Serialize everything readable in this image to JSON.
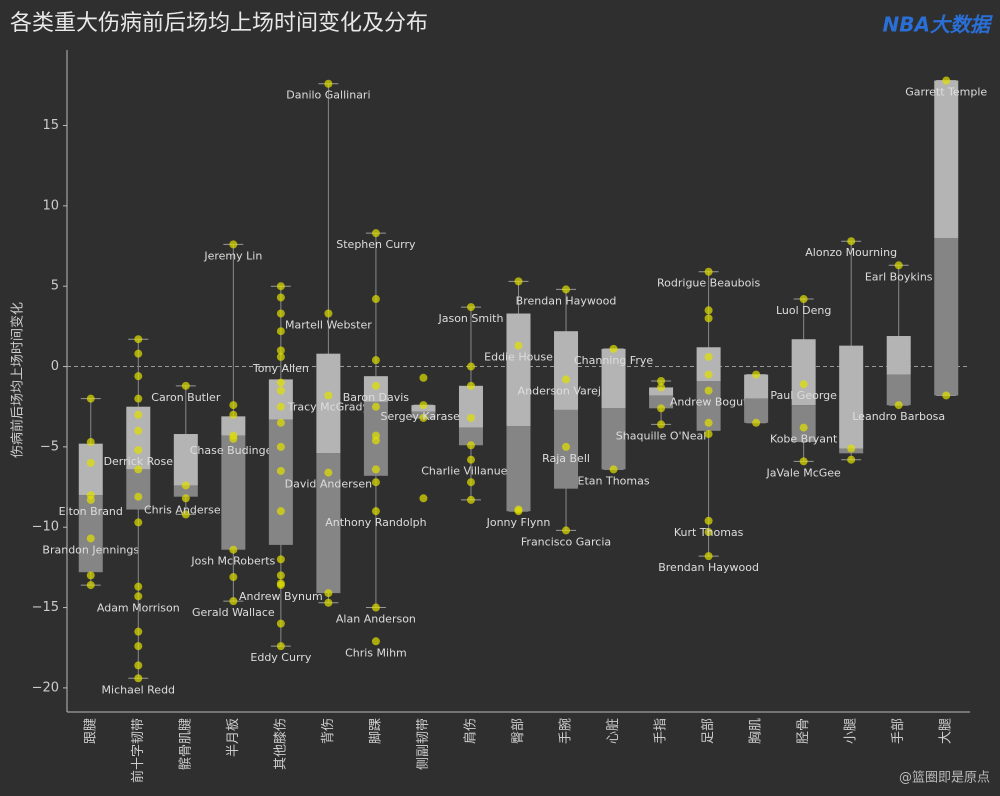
{
  "chart_data": {
    "type": "box",
    "title": "各类重大伤病前后场均上场时间变化及分布",
    "y_label": "伤病前后场均上场时间变化",
    "logo": "NBA大数据",
    "credit": "@篮圈即是原点",
    "ylim": [
      -21.5,
      19.7
    ],
    "yticks": [
      {
        "value": -20,
        "label": "−20"
      },
      {
        "value": -15,
        "label": "−15"
      },
      {
        "value": -10,
        "label": "−10"
      },
      {
        "value": -5,
        "label": "−5"
      },
      0,
      5,
      10,
      15
    ],
    "upper_color": "#b4b4b4",
    "lower_color": "#858585",
    "point_color": "#e0e000",
    "categories": [
      "跟腱",
      "前十字韧带",
      "髌骨肌腱",
      "半月板",
      "其他膝伤",
      "背伤",
      "脚踝",
      "侧副韧带",
      "肩伤",
      "臀部",
      "手腕",
      "心脏",
      "手指",
      "足部",
      "胸肌",
      "胫骨",
      "小腿",
      "手部",
      "大腿"
    ],
    "boxes": [
      {
        "low": -13.6,
        "q1": -12.8,
        "median": -8,
        "q3": -4.8,
        "high": -2,
        "points": [
          -2,
          -4.7,
          -6,
          -8,
          -13,
          -13.6
        ],
        "named": [
          {
            "name": "Elton Brand",
            "value": -8.3
          },
          {
            "name": "Brandon Jennings",
            "value": -10.7
          }
        ]
      },
      {
        "low": -19.4,
        "q1": -8.9,
        "median": -6.4,
        "q3": -2.5,
        "high": 1.7,
        "points": [
          1.7,
          0.8,
          -0.6,
          -2,
          -3,
          -4,
          -6.4,
          -8.1,
          -9.7,
          -13.7,
          -16.5,
          -17.4,
          -18.6
        ],
        "named": [
          {
            "name": "Derrick Rose",
            "value": -5.2
          },
          {
            "name": "Adam Morrison",
            "value": -14.3
          },
          {
            "name": "Michael Redd",
            "value": -19.4
          }
        ]
      },
      {
        "low": -9.2,
        "q1": -8.1,
        "median": -7.4,
        "q3": -4.2,
        "high": -1.2,
        "points": [
          -9.2,
          -7.4
        ],
        "named": [
          {
            "name": "Caron Butler",
            "value": -1.2
          },
          {
            "name": "Chris Andersen",
            "value": -8.2
          }
        ]
      },
      {
        "low": -14.6,
        "q1": -11.4,
        "median": -4.3,
        "q3": -3.1,
        "high": 7.6,
        "points": [
          -2.4,
          -3,
          -4.3,
          -13.1
        ],
        "named": [
          {
            "name": "Jeremy Lin",
            "value": 7.6
          },
          {
            "name": "Chase Budinger",
            "value": -4.5
          },
          {
            "name": "Josh McRoberts",
            "value": -11.4
          },
          {
            "name": "Gerald Wallace",
            "value": -14.6
          }
        ]
      },
      {
        "low": -17.4,
        "q1": -11.1,
        "median": -3.3,
        "q3": -0.8,
        "high": 5,
        "points": [
          5,
          4.3,
          3.3,
          2.2,
          1,
          -1,
          -1.5,
          -2.5,
          -3.5,
          -5,
          -6.5,
          -9,
          -12,
          -13,
          -13.5,
          -16
        ],
        "named": [
          {
            "name": "Tony Allen",
            "value": 0.6
          },
          {
            "name": "Andrew Bynum",
            "value": -13.6
          },
          {
            "name": "Eddy Curry",
            "value": -17.4
          }
        ]
      },
      {
        "low": -14.7,
        "q1": -14.1,
        "median": -5.4,
        "q3": 0.8,
        "high": 17.6,
        "points": [
          -14.1,
          -14.7
        ],
        "named": [
          {
            "name": "Danilo Gallinari",
            "value": 17.6
          },
          {
            "name": "Martell Webster",
            "value": 3.3
          },
          {
            "name": "Tracy McGrady",
            "value": -1.8
          },
          {
            "name": "David Andersen",
            "value": -6.6
          }
        ]
      },
      {
        "low": -15,
        "q1": -6.8,
        "median": -2.2,
        "q3": -0.6,
        "high": 8.3,
        "points": [
          4.2,
          0.4,
          -2.5,
          -4.3,
          -4.6,
          -6.4,
          -7.2
        ],
        "named": [
          {
            "name": "Stephen Curry",
            "value": 8.3
          },
          {
            "name": "Baron Davis",
            "value": -1.2
          },
          {
            "name": "Anthony Randolph",
            "value": -9
          },
          {
            "name": "Alan Anderson",
            "value": -15
          },
          {
            "name": "Chris Mihm",
            "value": -17.1
          }
        ]
      },
      {
        "low": -3.2,
        "q1": -3.2,
        "median": -2.8,
        "q3": -2.4,
        "high": -2.4,
        "points": [
          -0.7,
          -3.2,
          -8.2
        ],
        "named": [
          {
            "name": "Sergey Karasev",
            "value": -2.4
          }
        ]
      },
      {
        "low": -8.3,
        "q1": -4.9,
        "median": -3.8,
        "q3": -1.2,
        "high": 3.7,
        "points": [
          0,
          -1.2,
          -3.2,
          -4.9,
          -7.2,
          -8.3
        ],
        "named": [
          {
            "name": "Jason Smith",
            "value": 3.7
          },
          {
            "name": "Charlie Villanueva",
            "value": -5.8
          }
        ]
      },
      {
        "low": -9,
        "q1": -9,
        "median": -3.7,
        "q3": 3.3,
        "high": 5.3,
        "points": [
          5.3,
          -8.9
        ],
        "named": [
          {
            "name": "Eddie House",
            "value": 1.3
          },
          {
            "name": "Jonny Flynn",
            "value": -9
          }
        ]
      },
      {
        "low": -10.2,
        "q1": -7.6,
        "median": -2.7,
        "q3": 2.2,
        "high": 4.8,
        "points": [],
        "named": [
          {
            "name": "Brendan Haywood",
            "value": 4.8
          },
          {
            "name": "Anderson Varejao",
            "value": -0.8
          },
          {
            "name": "Raja Bell",
            "value": -5
          },
          {
            "name": "Francisco Garcia",
            "value": -10.2
          }
        ]
      },
      {
        "low": -6.4,
        "q1": -6.4,
        "median": -2.6,
        "q3": 1.1,
        "high": 1.1,
        "points": [],
        "named": [
          {
            "name": "Channing Frye",
            "value": 1.1
          },
          {
            "name": "Etan Thomas",
            "value": -6.4
          }
        ]
      },
      {
        "low": -3.6,
        "q1": -2.6,
        "median": -1.8,
        "q3": -1.3,
        "high": -0.9,
        "points": [
          -0.9,
          -1.3,
          -2.6
        ],
        "named": [
          {
            "name": "Shaquille O'Neal",
            "value": -3.6
          }
        ]
      },
      {
        "low": -11.8,
        "q1": -4,
        "median": -0.9,
        "q3": 1.2,
        "high": 5.9,
        "points": [
          3.5,
          3,
          0.6,
          -0.5,
          -3.5,
          -4.2,
          -10.3
        ],
        "named": [
          {
            "name": "Rodrigue Beaubois",
            "value": 5.9
          },
          {
            "name": "Andrew Bogut",
            "value": -1.5
          },
          {
            "name": "Kurt Thomas",
            "value": -9.6
          },
          {
            "name": "Brendan Haywood",
            "value": -11.8
          }
        ]
      },
      {
        "low": -3.5,
        "q1": -3.5,
        "median": -2,
        "q3": -0.5,
        "high": -0.5,
        "points": [
          -0.5,
          -3.5
        ],
        "named": []
      },
      {
        "low": -5.9,
        "q1": -4.7,
        "median": -2.4,
        "q3": 1.7,
        "high": 4.2,
        "points": [],
        "named": [
          {
            "name": "Luol Deng",
            "value": 4.2
          },
          {
            "name": "Paul George",
            "value": -1.1
          },
          {
            "name": "Kobe Bryant",
            "value": -3.8
          },
          {
            "name": "JaVale McGee",
            "value": -5.9
          }
        ]
      },
      {
        "low": -5.8,
        "q1": -5.4,
        "median": -5.1,
        "q3": 1.3,
        "high": 7.8,
        "points": [
          -5.8,
          -5.1
        ],
        "named": [
          {
            "name": "Alonzo Mourning",
            "value": 7.8
          }
        ]
      },
      {
        "low": -2.4,
        "q1": -2.4,
        "median": -0.5,
        "q3": 1.9,
        "high": 6.3,
        "points": [],
        "named": [
          {
            "name": "Earl Boykins",
            "value": 6.3
          },
          {
            "name": "Leandro Barbosa",
            "value": -2.4
          }
        ]
      },
      {
        "low": -1.8,
        "q1": -1.8,
        "median": 8,
        "q3": 17.8,
        "high": 17.8,
        "points": [
          -1.8
        ],
        "named": [
          {
            "name": "Garrett Temple",
            "value": 17.8
          }
        ]
      }
    ]
  }
}
